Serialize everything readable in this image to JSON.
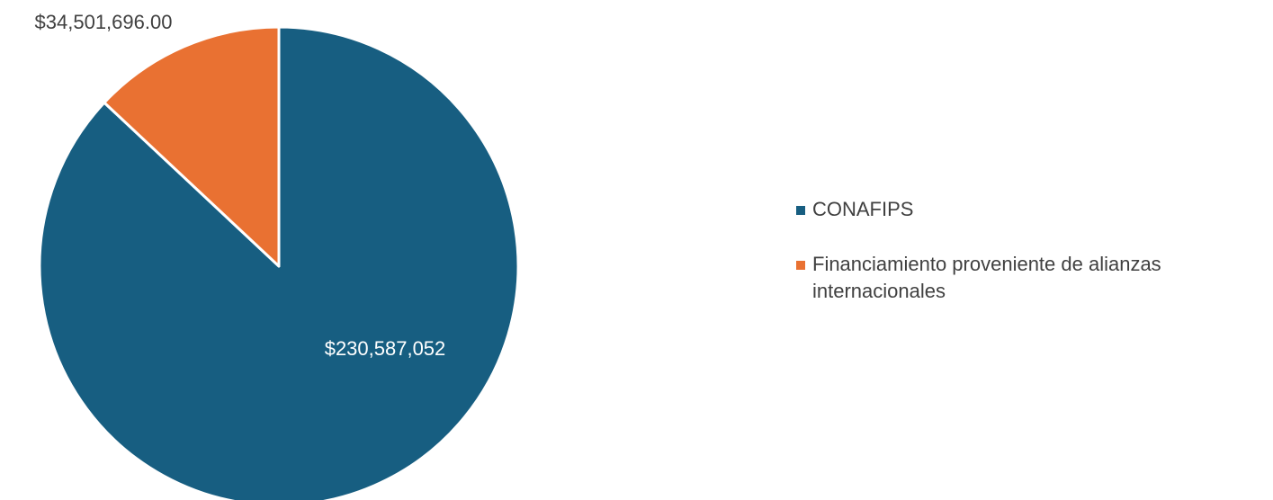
{
  "chart_data": {
    "type": "pie",
    "title": "",
    "slices": [
      {
        "name": "CONAFIPS",
        "value": 230587052,
        "label": "$230,587,052",
        "color": "#175E81"
      },
      {
        "name": "Financiamiento proveniente de alianzas internacionales",
        "value": 34501696,
        "label": "$34,501,696.00",
        "color": "#E97132"
      }
    ],
    "start_angle_deg": 0,
    "direction": "clockwise",
    "legend_position": "right"
  },
  "legend": {
    "items": [
      {
        "label": "CONAFIPS",
        "color": "#175E81"
      },
      {
        "label": "Financiamiento proveniente de alianzas internacionales",
        "color": "#E97132"
      }
    ]
  },
  "colors": {
    "slice_border": "#ffffff",
    "label_inside": "#ffffff",
    "label_outside": "#404040"
  }
}
